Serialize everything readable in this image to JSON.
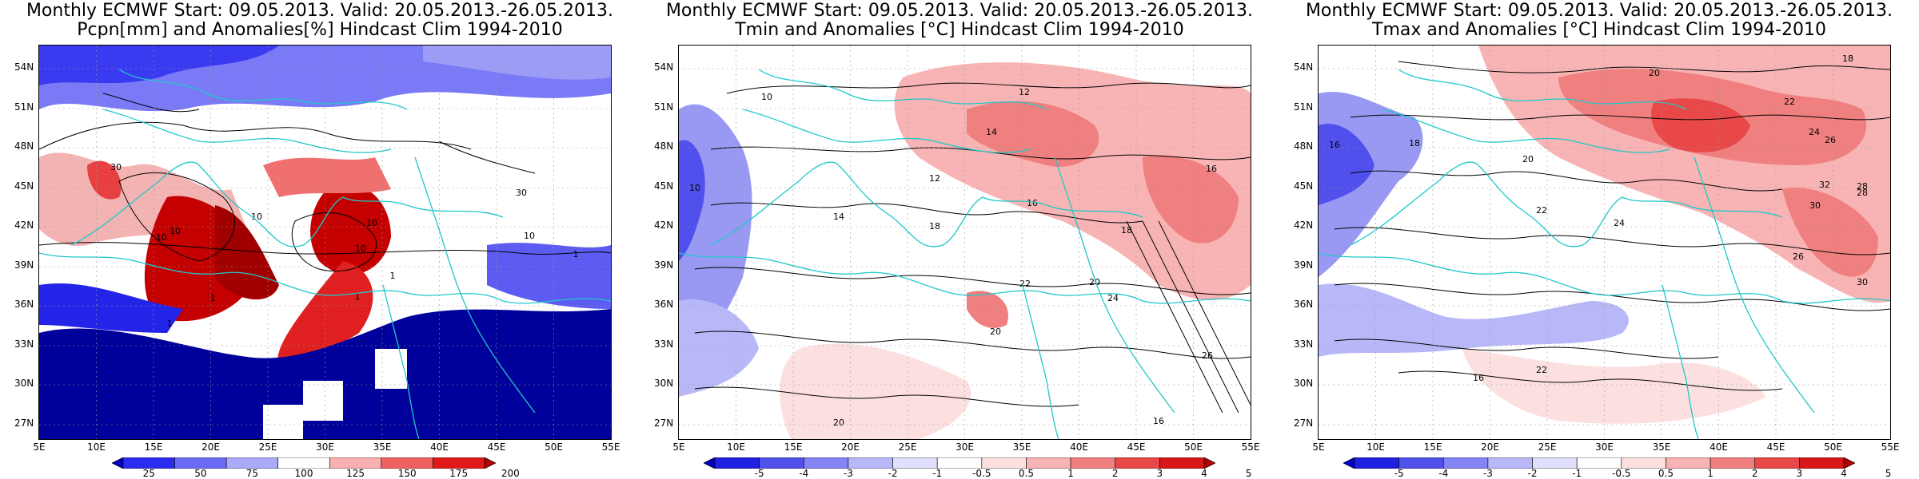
{
  "panels": [
    {
      "id": "pcpn",
      "title1": "Monthly ECMWF Start: 09.05.2013. Valid: 20.05.2013.-26.05.2013.",
      "title2": "Pcpn[mm] and Anomalies[%] Hindcast Clim 1994-2010",
      "colorbar_labels": [
        "25",
        "50",
        "75",
        "100",
        "125",
        "150",
        "175",
        "200"
      ],
      "colorbar_colors": [
        "#0000c0",
        "#2c2cf0",
        "#6a6af4",
        "#aaaaf8",
        "#ffffff",
        "#f8b0b0",
        "#f06060",
        "#e01818",
        "#b00000"
      ],
      "contour_labels": [
        "30",
        "10",
        "10",
        "10",
        "10",
        "1",
        "1",
        "1",
        "10",
        "30",
        "10",
        "1",
        "1"
      ]
    },
    {
      "id": "tmin",
      "title1": "Monthly ECMWF Start: 09.05.2013. Valid: 20.05.2013.-26.05.2013.",
      "title2": "Tmin and Anomalies [°C] Hindcast Clim 1994-2010",
      "colorbar_labels": [
        "-5",
        "-4",
        "-3",
        "-2",
        "-1",
        "-0.5",
        "0.5",
        "1",
        "2",
        "3",
        "4",
        "5"
      ],
      "colorbar_colors": [
        "#0000c8",
        "#2020e0",
        "#5050ec",
        "#8484f4",
        "#b8b8f8",
        "#e0e0fc",
        "#ffffff",
        "#fce0e0",
        "#f8b4b4",
        "#f08080",
        "#e84848",
        "#d81818",
        "#b00000"
      ],
      "contour_labels": [
        "10",
        "12",
        "14",
        "12",
        "16",
        "10",
        "14",
        "18",
        "16",
        "20",
        "18",
        "20",
        "22",
        "24",
        "26",
        "20",
        "18",
        "16"
      ]
    },
    {
      "id": "tmax",
      "title1": "Monthly ECMWF Start: 09.05.2013. Valid: 20.05.2013.-26.05.2013.",
      "title2": "Tmax and Anomalies [°C] Hindcast Clim 1994-2010",
      "colorbar_labels": [
        "-5",
        "-4",
        "-3",
        "-2",
        "-1",
        "-0.5",
        "0.5",
        "1",
        "2",
        "3",
        "4",
        "5"
      ],
      "colorbar_colors": [
        "#0000c8",
        "#2020e0",
        "#5050ec",
        "#8484f4",
        "#b8b8f8",
        "#e0e0fc",
        "#ffffff",
        "#fce0e0",
        "#f8b4b4",
        "#f08080",
        "#e84848",
        "#d81818",
        "#b00000"
      ],
      "contour_labels": [
        "18",
        "20",
        "22",
        "24",
        "26",
        "28",
        "16",
        "18",
        "20",
        "22",
        "24",
        "26",
        "28",
        "30",
        "32",
        "30",
        "22",
        "16"
      ]
    }
  ],
  "lat_labels": [
    "54N",
    "51N",
    "48N",
    "45N",
    "42N",
    "39N",
    "36N",
    "33N",
    "30N",
    "27N"
  ],
  "lon_labels": [
    "5E",
    "10E",
    "15E",
    "20E",
    "25E",
    "30E",
    "35E",
    "40E",
    "45E",
    "50E",
    "55E"
  ],
  "colors": {
    "coast": "#20c8c8",
    "contour": "#000000"
  }
}
